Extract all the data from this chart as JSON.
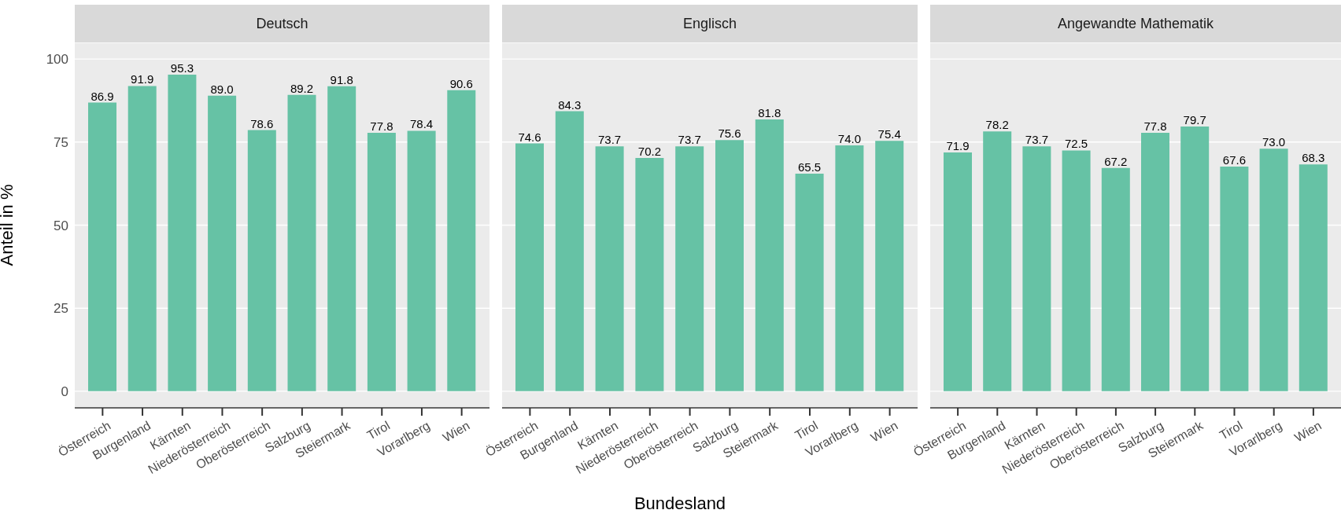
{
  "chart_data": [
    {
      "type": "bar",
      "title": "Deutsch",
      "ylabel": "Anteil in %",
      "categories": [
        "Österreich",
        "Burgenland",
        "Kärnten",
        "Niederösterreich",
        "Oberösterreich",
        "Salzburg",
        "Steiermark",
        "Tirol",
        "Vorarlberg",
        "Wien"
      ],
      "values": [
        86.9,
        91.9,
        95.3,
        89.0,
        78.6,
        89.2,
        91.8,
        77.8,
        78.4,
        90.6
      ],
      "value_labels": [
        "86.9",
        "91.9",
        "95.3",
        "89.0",
        "78.6",
        "89.2",
        "91.8",
        "77.8",
        "78.4",
        "90.6"
      ],
      "color": "#66c2a5",
      "ylim": [
        -5,
        105
      ],
      "yticks": [
        0,
        25,
        50,
        75,
        100
      ],
      "grid": "y",
      "legend": false
    },
    {
      "type": "bar",
      "title": "Englisch",
      "xlabel": "Bundesland",
      "categories": [
        "Österreich",
        "Burgenland",
        "Kärnten",
        "Niederösterreich",
        "Oberösterreich",
        "Salzburg",
        "Steiermark",
        "Tirol",
        "Vorarlberg",
        "Wien"
      ],
      "values": [
        74.6,
        84.3,
        73.7,
        70.2,
        73.7,
        75.6,
        81.8,
        65.5,
        74.0,
        75.4
      ],
      "value_labels": [
        "74.6",
        "84.3",
        "73.7",
        "70.2",
        "73.7",
        "75.6",
        "81.8",
        "65.5",
        "74.0",
        "75.4"
      ],
      "color": "#66c2a5",
      "ylim": [
        -5,
        105
      ],
      "yticks": [
        0,
        25,
        50,
        75,
        100
      ],
      "grid": "y",
      "legend": false,
      "tick_labels": "x"
    },
    {
      "type": "bar",
      "title": "Angewandte Mathematik",
      "categories": [
        "Österreich",
        "Burgenland",
        "Kärnten",
        "Niederösterreich",
        "Oberösterreich",
        "Salzburg",
        "Steiermark",
        "Tirol",
        "Vorarlberg",
        "Wien"
      ],
      "values": [
        71.9,
        78.2,
        73.7,
        72.5,
        67.2,
        77.8,
        79.7,
        67.6,
        73.0,
        68.3
      ],
      "value_labels": [
        "71.9",
        "78.2",
        "73.7",
        "72.5",
        "67.2",
        "77.8",
        "79.7",
        "67.6",
        "73.0",
        "68.3"
      ],
      "color": "#66c2a5",
      "ylim": [
        -5,
        105
      ],
      "yticks": [
        0,
        25,
        50,
        75,
        100
      ],
      "grid": "y",
      "legend": false,
      "tick_labels": "x"
    }
  ]
}
